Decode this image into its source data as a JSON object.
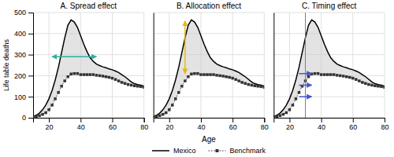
{
  "chart_data": [
    {
      "type": "line",
      "title": "A. Spread effect",
      "ylabel": "Life table deaths",
      "x": [
        10,
        12,
        14,
        16,
        18,
        20,
        22,
        24,
        26,
        28,
        30,
        32,
        34,
        36,
        38,
        40,
        42,
        44,
        46,
        48,
        50,
        52,
        54,
        56,
        58,
        60,
        62,
        64,
        66,
        68,
        70,
        72,
        74,
        76,
        78,
        80
      ],
      "series": [
        {
          "name": "Mexico",
          "color": "#000000",
          "line_style": "solid",
          "values": [
            5,
            12,
            22,
            38,
            60,
            90,
            130,
            180,
            240,
            310,
            380,
            440,
            465,
            455,
            430,
            390,
            350,
            315,
            285,
            268,
            255,
            248,
            242,
            238,
            232,
            228,
            222,
            215,
            205,
            195,
            183,
            170,
            162,
            158,
            155,
            150
          ]
        },
        {
          "name": "Benchmark",
          "color": "#333333",
          "line_style": "dotted",
          "marker": "square",
          "values": [
            3,
            6,
            10,
            16,
            24,
            38,
            60,
            90,
            120,
            150,
            175,
            195,
            208,
            210,
            210,
            205,
            205,
            205,
            205,
            205,
            202,
            200,
            198,
            195,
            192,
            188,
            182,
            175,
            168,
            163,
            158,
            155,
            152,
            150,
            148,
            145
          ]
        }
      ],
      "xlim": [
        10,
        80
      ],
      "ylim": [
        0,
        500
      ],
      "xticks": [
        20,
        40,
        60,
        80
      ],
      "yticks": [
        0,
        100,
        200,
        300,
        400,
        500
      ],
      "grid": true,
      "annotations": [
        {
          "type": "fill_between",
          "color": "#c8c8c8"
        },
        {
          "type": "double_arrow",
          "x": [
            22,
            50
          ],
          "y": [
            290,
            290
          ],
          "color": "#2ab0a0"
        }
      ]
    },
    {
      "type": "line",
      "title": "B. Allocation effect",
      "xlabel": "Age",
      "x": [
        10,
        12,
        14,
        16,
        18,
        20,
        22,
        24,
        26,
        28,
        30,
        32,
        34,
        36,
        38,
        40,
        42,
        44,
        46,
        48,
        50,
        52,
        54,
        56,
        58,
        60,
        62,
        64,
        66,
        68,
        70,
        72,
        74,
        76,
        78,
        80
      ],
      "series": [
        {
          "name": "Mexico",
          "color": "#000000",
          "line_style": "solid",
          "values": [
            5,
            12,
            22,
            38,
            60,
            90,
            130,
            180,
            240,
            310,
            380,
            440,
            465,
            455,
            430,
            390,
            350,
            315,
            285,
            268,
            255,
            248,
            242,
            238,
            232,
            228,
            222,
            215,
            205,
            195,
            183,
            170,
            162,
            158,
            155,
            150
          ]
        },
        {
          "name": "Benchmark",
          "color": "#333333",
          "line_style": "dotted",
          "marker": "square",
          "values": [
            3,
            6,
            10,
            16,
            24,
            38,
            60,
            90,
            120,
            150,
            175,
            195,
            208,
            210,
            210,
            205,
            205,
            205,
            205,
            205,
            202,
            200,
            198,
            195,
            192,
            188,
            182,
            175,
            168,
            163,
            158,
            155,
            152,
            150,
            148,
            145
          ]
        }
      ],
      "xlim": [
        10,
        80
      ],
      "ylim": [
        0,
        500
      ],
      "xticks": [
        20,
        40,
        60,
        80
      ],
      "yticks": [
        0,
        100,
        200,
        300,
        400,
        500
      ],
      "grid": true,
      "tick_labels": "x",
      "legend": "bottom",
      "annotations": [
        {
          "type": "fill_between",
          "color": "#c8c8c8"
        },
        {
          "type": "double_arrow",
          "x": [
            30,
            30
          ],
          "y": [
            460,
            210
          ],
          "color": "#e8b800"
        }
      ]
    },
    {
      "type": "line",
      "title": "C. Timing effect",
      "x": [
        10,
        12,
        14,
        16,
        18,
        20,
        22,
        24,
        26,
        28,
        30,
        32,
        34,
        36,
        38,
        40,
        42,
        44,
        46,
        48,
        50,
        52,
        54,
        56,
        58,
        60,
        62,
        64,
        66,
        68,
        70,
        72,
        74,
        76,
        78,
        80
      ],
      "series": [
        {
          "name": "Mexico",
          "color": "#000000",
          "line_style": "solid",
          "values": [
            5,
            12,
            22,
            38,
            60,
            90,
            130,
            180,
            240,
            310,
            380,
            440,
            465,
            455,
            430,
            390,
            350,
            315,
            285,
            268,
            255,
            248,
            242,
            238,
            232,
            228,
            222,
            215,
            205,
            195,
            183,
            170,
            162,
            158,
            155,
            150
          ]
        },
        {
          "name": "Benchmark",
          "color": "#333333",
          "line_style": "dotted",
          "marker": "square",
          "values": [
            3,
            6,
            10,
            16,
            24,
            38,
            60,
            90,
            120,
            150,
            175,
            195,
            208,
            210,
            210,
            205,
            205,
            205,
            205,
            205,
            202,
            200,
            198,
            195,
            192,
            188,
            182,
            175,
            168,
            163,
            158,
            155,
            152,
            150,
            148,
            145
          ]
        }
      ],
      "xlim": [
        10,
        80
      ],
      "ylim": [
        0,
        500
      ],
      "xticks": [
        20,
        40,
        60,
        80
      ],
      "yticks": [
        0,
        100,
        200,
        300,
        400,
        500
      ],
      "grid": true,
      "tick_labels": "x",
      "annotations": [
        {
          "type": "fill_between",
          "color": "#c8c8c8"
        },
        {
          "type": "vline",
          "x": 30,
          "color": "grey"
        },
        {
          "type": "arrow",
          "x": [
            26,
            34
          ],
          "y": [
            210,
            210
          ],
          "color": "#4455cc"
        },
        {
          "type": "arrow",
          "x": [
            26,
            34
          ],
          "y": [
            155,
            155
          ],
          "color": "#4455cc"
        },
        {
          "type": "arrow",
          "x": [
            26,
            34
          ],
          "y": [
            100,
            100
          ],
          "color": "#4455cc"
        }
      ]
    }
  ]
}
